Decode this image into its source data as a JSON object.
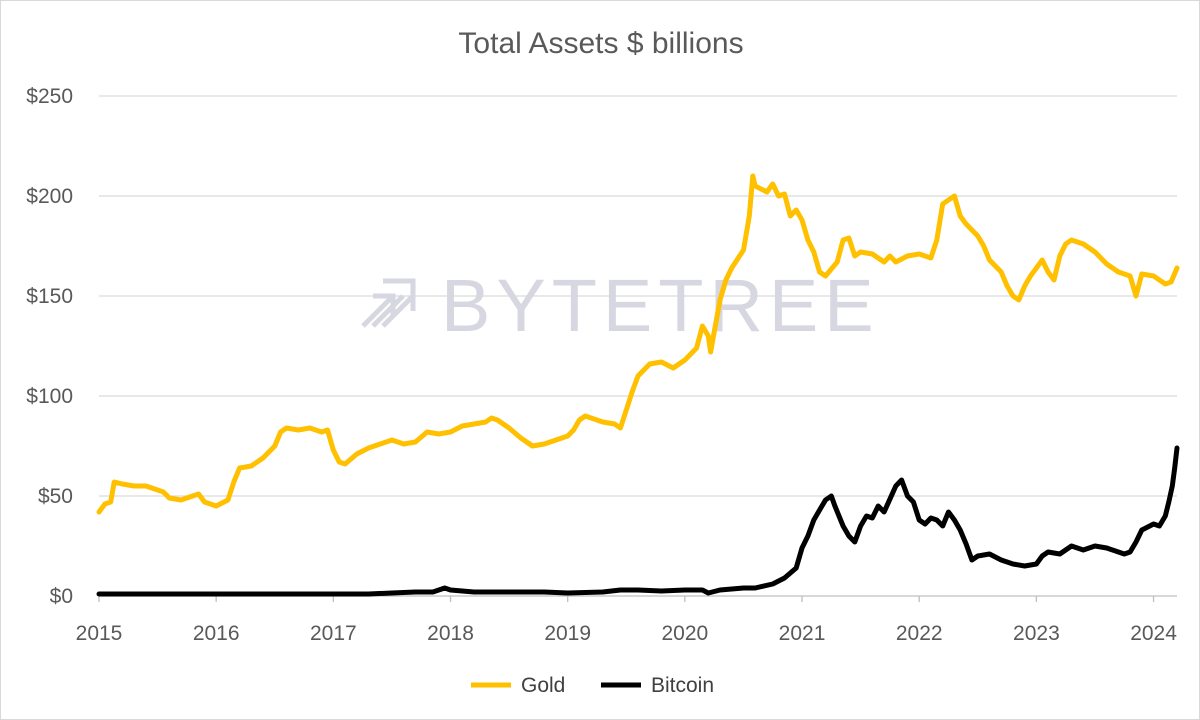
{
  "chart_data": {
    "type": "line",
    "title": "Total Assets $ billions",
    "xlabel": "",
    "ylabel": "",
    "x_ticks": [
      "2015",
      "2016",
      "2017",
      "2018",
      "2019",
      "2020",
      "2021",
      "2022",
      "2023",
      "2024"
    ],
    "xlim": [
      2015.0,
      2024.2
    ],
    "y_ticks": [
      "$0",
      "$50",
      "$100",
      "$150",
      "$200",
      "$250"
    ],
    "ylim": [
      0,
      250
    ],
    "grid": "horizontal",
    "legend_position": "bottom",
    "watermark": "BYTETREE",
    "series": [
      {
        "name": "Gold",
        "color": "#ffc000",
        "points": [
          [
            2015.0,
            42
          ],
          [
            2015.05,
            46
          ],
          [
            2015.1,
            47
          ],
          [
            2015.13,
            57
          ],
          [
            2015.2,
            56
          ],
          [
            2015.3,
            55
          ],
          [
            2015.4,
            55
          ],
          [
            2015.5,
            53
          ],
          [
            2015.55,
            52
          ],
          [
            2015.6,
            49
          ],
          [
            2015.7,
            48
          ],
          [
            2015.8,
            50
          ],
          [
            2015.85,
            51
          ],
          [
            2015.9,
            47
          ],
          [
            2016.0,
            45
          ],
          [
            2016.1,
            48
          ],
          [
            2016.15,
            57
          ],
          [
            2016.2,
            64
          ],
          [
            2016.3,
            65
          ],
          [
            2016.4,
            69
          ],
          [
            2016.5,
            75
          ],
          [
            2016.55,
            82
          ],
          [
            2016.6,
            84
          ],
          [
            2016.7,
            83
          ],
          [
            2016.8,
            84
          ],
          [
            2016.9,
            82
          ],
          [
            2016.95,
            83
          ],
          [
            2017.0,
            73
          ],
          [
            2017.05,
            67
          ],
          [
            2017.1,
            66
          ],
          [
            2017.2,
            71
          ],
          [
            2017.3,
            74
          ],
          [
            2017.4,
            76
          ],
          [
            2017.5,
            78
          ],
          [
            2017.6,
            76
          ],
          [
            2017.7,
            77
          ],
          [
            2017.8,
            82
          ],
          [
            2017.9,
            81
          ],
          [
            2018.0,
            82
          ],
          [
            2018.1,
            85
          ],
          [
            2018.2,
            86
          ],
          [
            2018.3,
            87
          ],
          [
            2018.35,
            89
          ],
          [
            2018.4,
            88
          ],
          [
            2018.5,
            84
          ],
          [
            2018.6,
            79
          ],
          [
            2018.7,
            75
          ],
          [
            2018.8,
            76
          ],
          [
            2018.9,
            78
          ],
          [
            2019.0,
            80
          ],
          [
            2019.05,
            83
          ],
          [
            2019.1,
            88
          ],
          [
            2019.15,
            90
          ],
          [
            2019.2,
            89
          ],
          [
            2019.3,
            87
          ],
          [
            2019.4,
            86
          ],
          [
            2019.45,
            84
          ],
          [
            2019.5,
            93
          ],
          [
            2019.55,
            102
          ],
          [
            2019.6,
            110
          ],
          [
            2019.7,
            116
          ],
          [
            2019.8,
            117
          ],
          [
            2019.9,
            114
          ],
          [
            2020.0,
            118
          ],
          [
            2020.1,
            124
          ],
          [
            2020.15,
            135
          ],
          [
            2020.2,
            130
          ],
          [
            2020.22,
            122
          ],
          [
            2020.3,
            148
          ],
          [
            2020.35,
            158
          ],
          [
            2020.4,
            164
          ],
          [
            2020.5,
            173
          ],
          [
            2020.55,
            190
          ],
          [
            2020.58,
            210
          ],
          [
            2020.6,
            205
          ],
          [
            2020.7,
            202
          ],
          [
            2020.75,
            206
          ],
          [
            2020.8,
            200
          ],
          [
            2020.85,
            201
          ],
          [
            2020.9,
            190
          ],
          [
            2020.95,
            193
          ],
          [
            2021.0,
            188
          ],
          [
            2021.05,
            178
          ],
          [
            2021.1,
            172
          ],
          [
            2021.15,
            162
          ],
          [
            2021.2,
            160
          ],
          [
            2021.3,
            167
          ],
          [
            2021.35,
            178
          ],
          [
            2021.4,
            179
          ],
          [
            2021.45,
            170
          ],
          [
            2021.5,
            172
          ],
          [
            2021.6,
            171
          ],
          [
            2021.7,
            167
          ],
          [
            2021.75,
            170
          ],
          [
            2021.8,
            167
          ],
          [
            2021.9,
            170
          ],
          [
            2022.0,
            171
          ],
          [
            2022.1,
            169
          ],
          [
            2022.15,
            178
          ],
          [
            2022.2,
            196
          ],
          [
            2022.25,
            198
          ],
          [
            2022.3,
            200
          ],
          [
            2022.35,
            190
          ],
          [
            2022.4,
            186
          ],
          [
            2022.5,
            180
          ],
          [
            2022.55,
            175
          ],
          [
            2022.6,
            168
          ],
          [
            2022.7,
            162
          ],
          [
            2022.75,
            155
          ],
          [
            2022.8,
            150
          ],
          [
            2022.85,
            148
          ],
          [
            2022.9,
            155
          ],
          [
            2022.95,
            160
          ],
          [
            2023.0,
            164
          ],
          [
            2023.05,
            168
          ],
          [
            2023.1,
            162
          ],
          [
            2023.15,
            158
          ],
          [
            2023.2,
            170
          ],
          [
            2023.25,
            176
          ],
          [
            2023.3,
            178
          ],
          [
            2023.4,
            176
          ],
          [
            2023.5,
            172
          ],
          [
            2023.6,
            166
          ],
          [
            2023.7,
            162
          ],
          [
            2023.8,
            160
          ],
          [
            2023.85,
            150
          ],
          [
            2023.9,
            161
          ],
          [
            2024.0,
            160
          ],
          [
            2024.05,
            158
          ],
          [
            2024.1,
            156
          ],
          [
            2024.15,
            157
          ],
          [
            2024.2,
            164
          ]
        ]
      },
      {
        "name": "Bitcoin",
        "color": "#000000",
        "points": [
          [
            2015.0,
            1
          ],
          [
            2015.5,
            1
          ],
          [
            2016.0,
            1
          ],
          [
            2016.5,
            1
          ],
          [
            2017.0,
            1
          ],
          [
            2017.3,
            1
          ],
          [
            2017.5,
            1.5
          ],
          [
            2017.7,
            2
          ],
          [
            2017.85,
            2
          ],
          [
            2017.95,
            4
          ],
          [
            2018.0,
            3
          ],
          [
            2018.2,
            2
          ],
          [
            2018.5,
            2
          ],
          [
            2018.8,
            2
          ],
          [
            2019.0,
            1.5
          ],
          [
            2019.3,
            2
          ],
          [
            2019.45,
            3
          ],
          [
            2019.6,
            3
          ],
          [
            2019.8,
            2.5
          ],
          [
            2020.0,
            3
          ],
          [
            2020.15,
            3
          ],
          [
            2020.2,
            1.5
          ],
          [
            2020.3,
            3
          ],
          [
            2020.5,
            4
          ],
          [
            2020.6,
            4
          ],
          [
            2020.75,
            6
          ],
          [
            2020.85,
            9
          ],
          [
            2020.95,
            14
          ],
          [
            2021.0,
            24
          ],
          [
            2021.05,
            30
          ],
          [
            2021.1,
            38
          ],
          [
            2021.15,
            43
          ],
          [
            2021.2,
            48
          ],
          [
            2021.25,
            50
          ],
          [
            2021.28,
            45
          ],
          [
            2021.35,
            35
          ],
          [
            2021.4,
            30
          ],
          [
            2021.45,
            27
          ],
          [
            2021.5,
            35
          ],
          [
            2021.55,
            40
          ],
          [
            2021.6,
            39
          ],
          [
            2021.65,
            45
          ],
          [
            2021.7,
            42
          ],
          [
            2021.8,
            55
          ],
          [
            2021.85,
            58
          ],
          [
            2021.9,
            50
          ],
          [
            2021.95,
            47
          ],
          [
            2022.0,
            38
          ],
          [
            2022.05,
            36
          ],
          [
            2022.1,
            39
          ],
          [
            2022.15,
            38
          ],
          [
            2022.2,
            35
          ],
          [
            2022.25,
            42
          ],
          [
            2022.3,
            38
          ],
          [
            2022.35,
            33
          ],
          [
            2022.4,
            26
          ],
          [
            2022.45,
            18
          ],
          [
            2022.5,
            20
          ],
          [
            2022.6,
            21
          ],
          [
            2022.7,
            18
          ],
          [
            2022.8,
            16
          ],
          [
            2022.9,
            15
          ],
          [
            2023.0,
            16
          ],
          [
            2023.05,
            20
          ],
          [
            2023.1,
            22
          ],
          [
            2023.2,
            21
          ],
          [
            2023.3,
            25
          ],
          [
            2023.4,
            23
          ],
          [
            2023.5,
            25
          ],
          [
            2023.6,
            24
          ],
          [
            2023.7,
            22
          ],
          [
            2023.75,
            21
          ],
          [
            2023.8,
            22
          ],
          [
            2023.85,
            27
          ],
          [
            2023.9,
            33
          ],
          [
            2024.0,
            36
          ],
          [
            2024.05,
            35
          ],
          [
            2024.1,
            40
          ],
          [
            2024.13,
            47
          ],
          [
            2024.16,
            55
          ],
          [
            2024.18,
            64
          ],
          [
            2024.2,
            74
          ]
        ]
      }
    ]
  }
}
